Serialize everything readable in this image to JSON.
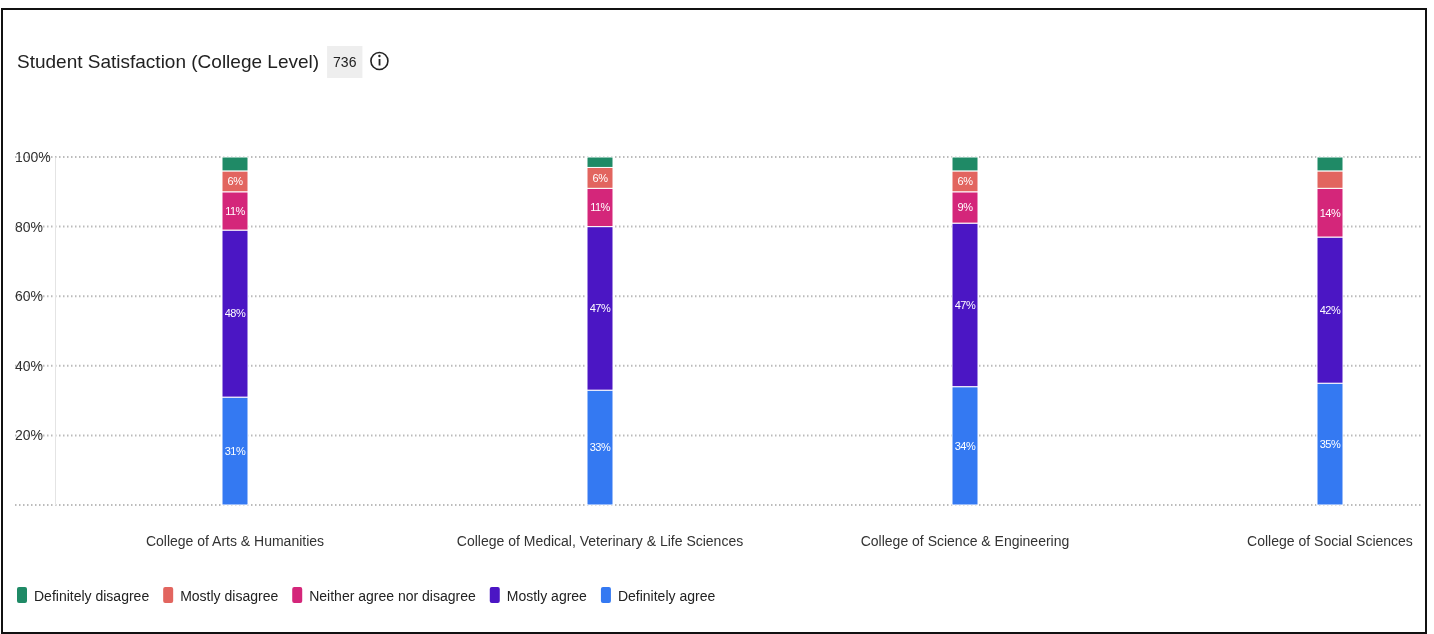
{
  "chart_data": {
    "type": "bar",
    "title": "Student Satisfaction (College Level)",
    "annotations": [
      "736"
    ],
    "stacked": true,
    "categories": [
      "College of Arts & Humanities",
      "College of Medical, Veterinary & Life Sciences",
      "College of Science & Engineering",
      "College of Social Sciences"
    ],
    "series": [
      {
        "name": "Definitely agree",
        "color": "#3479f2",
        "values": [
          31,
          33,
          34,
          35
        ],
        "value_labels": [
          "31%",
          "33%",
          "34%",
          "35%"
        ]
      },
      {
        "name": "Mostly agree",
        "color": "#4b16c4",
        "values": [
          48,
          47,
          47,
          42
        ],
        "value_labels": [
          "48%",
          "47%",
          "47%",
          "42%"
        ]
      },
      {
        "name": "Neither agree nor disagree",
        "color": "#d4267a",
        "values": [
          11,
          11,
          9,
          14
        ],
        "value_labels": [
          "11%",
          "11%",
          "9%",
          "14%"
        ]
      },
      {
        "name": "Mostly disagree",
        "color": "#e2655f",
        "values": [
          6,
          6,
          6,
          5
        ],
        "value_labels": [
          "6%",
          "6%",
          "6%",
          null
        ]
      },
      {
        "name": "Definitely disagree",
        "color": "#1f8a66",
        "values": [
          4,
          3,
          4,
          4
        ],
        "value_labels": [
          null,
          null,
          null,
          null
        ]
      }
    ],
    "ylim": [
      0,
      100
    ],
    "yticks": [
      {
        "value": 0,
        "label": null
      },
      {
        "value": 20,
        "label": "20%"
      },
      {
        "value": 40,
        "label": "40%"
      },
      {
        "value": 60,
        "label": "60%"
      },
      {
        "value": 80,
        "label": "80%"
      },
      {
        "value": 100,
        "label": "100%"
      }
    ],
    "grid": "y",
    "legend": "bottom left"
  }
}
